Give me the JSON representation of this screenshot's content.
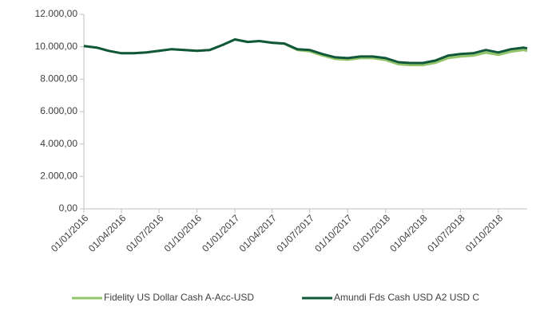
{
  "chart_data": {
    "type": "line",
    "x": [
      "01/01/2016",
      "01/02/2016",
      "01/03/2016",
      "01/04/2016",
      "01/05/2016",
      "01/06/2016",
      "01/07/2016",
      "01/08/2016",
      "01/09/2016",
      "01/10/2016",
      "01/11/2016",
      "01/12/2016",
      "01/01/2017",
      "01/02/2017",
      "01/03/2017",
      "01/04/2017",
      "01/05/2017",
      "01/06/2017",
      "01/07/2017",
      "01/08/2017",
      "01/09/2017",
      "01/10/2017",
      "01/11/2017",
      "01/12/2017",
      "01/01/2018",
      "01/02/2018",
      "01/03/2018",
      "01/04/2018",
      "01/05/2018",
      "01/06/2018",
      "01/07/2018",
      "01/08/2018",
      "01/09/2018",
      "01/10/2018",
      "01/11/2018",
      "01/12/2018",
      "10/12/2018"
    ],
    "series": [
      {
        "name": "Fidelity US Dollar Cash A-Acc-USD",
        "color": "#92c56a",
        "values": [
          10050,
          9950,
          9750,
          9600,
          9600,
          9650,
          9750,
          9850,
          9800,
          9750,
          9800,
          10100,
          10450,
          10300,
          10350,
          10250,
          10180,
          9800,
          9720,
          9460,
          9250,
          9200,
          9300,
          9300,
          9180,
          8920,
          8870,
          8870,
          9010,
          9300,
          9400,
          9450,
          9640,
          9500,
          9700,
          9800,
          9750
        ]
      },
      {
        "name": "Amundi Fds Cash USD A2 USD C",
        "color": "#11583a",
        "values": [
          10050,
          9950,
          9750,
          9600,
          9600,
          9650,
          9750,
          9850,
          9800,
          9750,
          9800,
          10100,
          10450,
          10300,
          10350,
          10250,
          10200,
          9850,
          9800,
          9550,
          9350,
          9300,
          9400,
          9400,
          9300,
          9050,
          9000,
          9000,
          9150,
          9450,
          9550,
          9600,
          9800,
          9650,
          9850,
          9950,
          9900
        ]
      }
    ],
    "xlim": [
      "01/01/2016",
      "10/12/2018"
    ],
    "xticks": [
      "01/01/2016",
      "01/04/2016",
      "01/07/2016",
      "01/10/2016",
      "01/01/2017",
      "01/04/2017",
      "01/07/2017",
      "01/10/2017",
      "01/01/2018",
      "01/04/2018",
      "01/07/2018",
      "01/10/2018"
    ],
    "ylim": [
      0,
      12000
    ],
    "yticks": [
      {
        "value": 0,
        "label": "0,00"
      },
      {
        "value": 2000,
        "label": "2.000,00"
      },
      {
        "value": 4000,
        "label": "4.000,00"
      },
      {
        "value": 6000,
        "label": "6.000,00"
      },
      {
        "value": 8000,
        "label": "8.000,00"
      },
      {
        "value": 10000,
        "label": "10.000,00"
      },
      {
        "value": 12000,
        "label": "12.000,00"
      }
    ],
    "legend": "bottom"
  }
}
